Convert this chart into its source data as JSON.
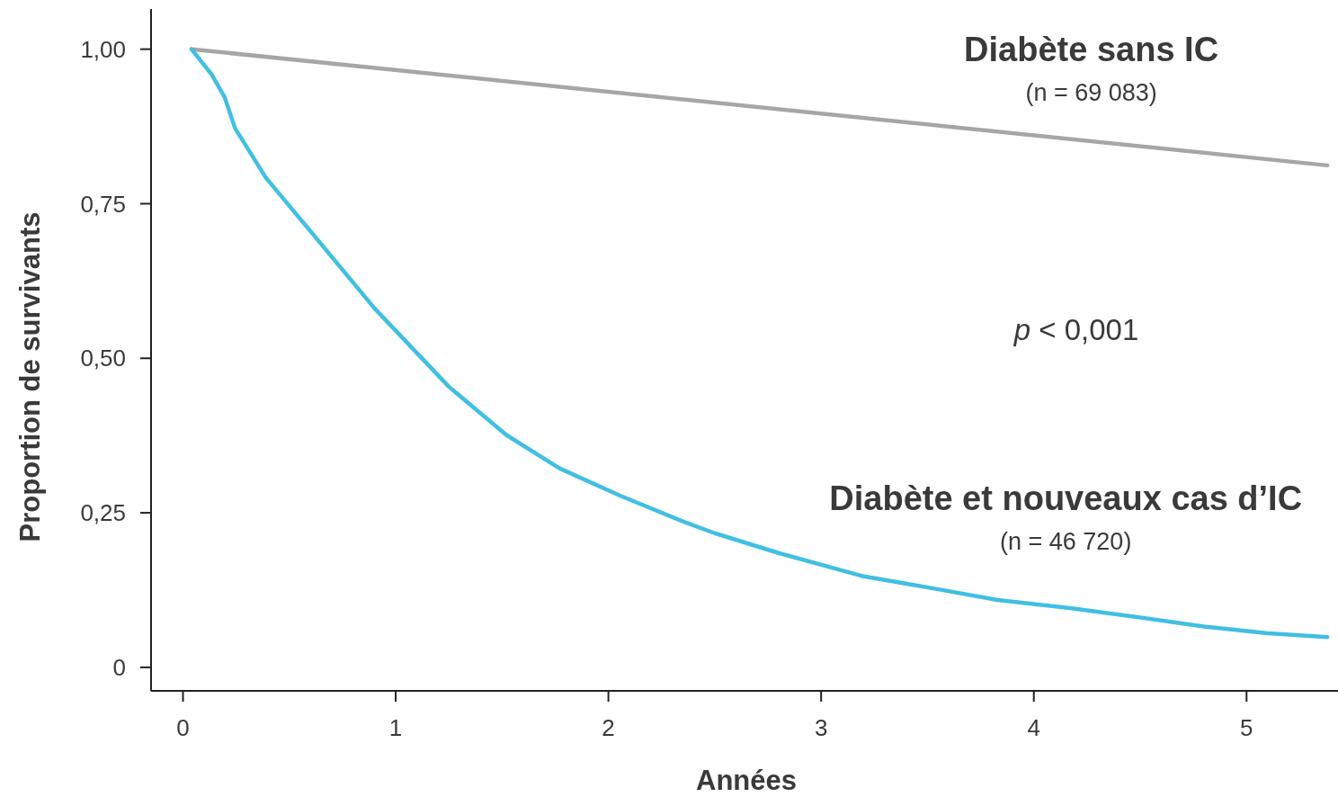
{
  "chart_data": {
    "type": "line",
    "xlabel": "Années",
    "ylabel": "Proportion de survivants",
    "xlim": [
      -0.15,
      5.43
    ],
    "ylim": [
      -0.038,
      1.065
    ],
    "xticks": [
      0,
      1,
      2,
      3,
      4,
      5
    ],
    "yticks": [
      {
        "value": 0,
        "label": "0"
      },
      {
        "value": 0.25,
        "label": "0,25"
      },
      {
        "value": 0.5,
        "label": "0,50"
      },
      {
        "value": 0.75,
        "label": "0,75"
      },
      {
        "value": 1,
        "label": "1,00"
      }
    ],
    "grid": false,
    "marker": "none",
    "line_style": "solid",
    "annotations": [
      "p < 0,001"
    ],
    "series": [
      {
        "name": "Diabète sans IC\n(n = 69 083)",
        "color": "#a6a6a6",
        "x": [
          0.04,
          5.38
        ],
        "values": [
          1.0,
          0.812
        ]
      },
      {
        "name": "Diabète et nouveaux cas d’IC\n(n = 46 720)",
        "color": "#41bfe3",
        "x": [
          0.04,
          0.135,
          0.195,
          0.245,
          0.39,
          0.62,
          0.9,
          1.25,
          1.52,
          1.77,
          2.06,
          2.35,
          2.5,
          2.8,
          3.19,
          3.54,
          3.83,
          4.17,
          4.47,
          4.8,
          5.1,
          5.38
        ],
        "values": [
          1.0,
          0.959,
          0.923,
          0.872,
          0.792,
          0.697,
          0.581,
          0.454,
          0.376,
          0.322,
          0.277,
          0.236,
          0.217,
          0.185,
          0.148,
          0.127,
          0.109,
          0.096,
          0.082,
          0.066,
          0.055,
          0.049
        ]
      }
    ]
  }
}
